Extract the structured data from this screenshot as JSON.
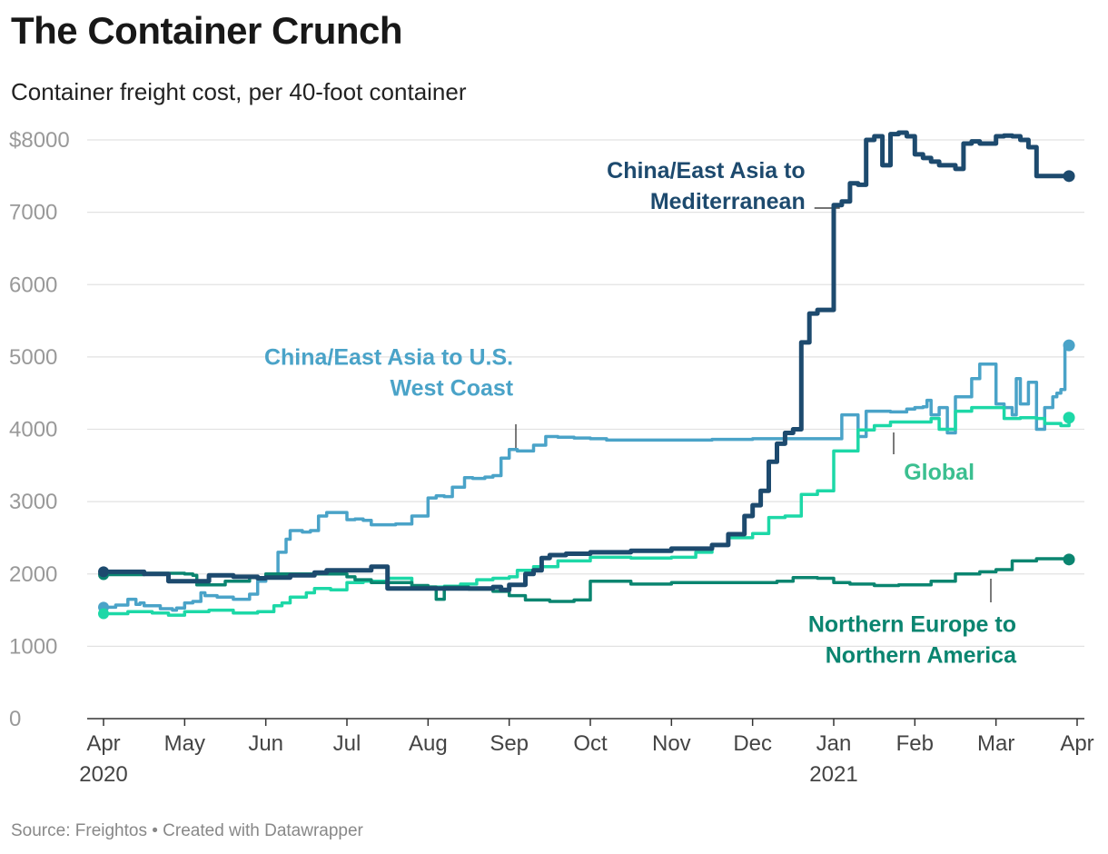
{
  "header": {
    "title": "The Container Crunch",
    "subtitle": "Container freight cost, per 40-foot container"
  },
  "footer": {
    "source": "Source: Freightos • Created with Datawrapper"
  },
  "chart_data": {
    "type": "line",
    "title": "The Container Crunch",
    "subtitle": "Container freight cost, per 40-foot container",
    "xlabel": "",
    "ylabel": "",
    "ylim": [
      0,
      8000
    ],
    "xlim": [
      0,
      12
    ],
    "x_unit": "months since Apr 1, 2020",
    "grid": true,
    "y_ticks": [
      {
        "value": 8000,
        "label": "$8000"
      },
      {
        "value": 7000,
        "label": "7000"
      },
      {
        "value": 6000,
        "label": "6000"
      },
      {
        "value": 5000,
        "label": "5000"
      },
      {
        "value": 4000,
        "label": "4000"
      },
      {
        "value": 3000,
        "label": "3000"
      },
      {
        "value": 2000,
        "label": "2000"
      },
      {
        "value": 1000,
        "label": "1000"
      },
      {
        "value": 0,
        "label": "0"
      }
    ],
    "x_ticks": [
      {
        "value": 0,
        "label": "Apr",
        "sublabel": "2020"
      },
      {
        "value": 1,
        "label": "May"
      },
      {
        "value": 2,
        "label": "Jun"
      },
      {
        "value": 3,
        "label": "Jul"
      },
      {
        "value": 4,
        "label": "Aug"
      },
      {
        "value": 5,
        "label": "Sep"
      },
      {
        "value": 6,
        "label": "Oct"
      },
      {
        "value": 7,
        "label": "Nov"
      },
      {
        "value": 8,
        "label": "Dec"
      },
      {
        "value": 9,
        "label": "Jan",
        "sublabel": "2021"
      },
      {
        "value": 10,
        "label": "Feb"
      },
      {
        "value": 11,
        "label": "Mar"
      },
      {
        "value": 12,
        "label": "Apr"
      }
    ],
    "series": [
      {
        "name": "China/East Asia to U.S. West Coast",
        "color": "#4aa3c8",
        "stroke": 3.5,
        "x": [
          0,
          0.15,
          0.3,
          0.4,
          0.45,
          0.5,
          0.7,
          0.85,
          0.9,
          1.0,
          1.1,
          1.2,
          1.25,
          1.4,
          1.6,
          1.8,
          1.9,
          2.0,
          2.15,
          2.25,
          2.3,
          2.45,
          2.55,
          2.65,
          2.75,
          3.0,
          3.1,
          3.2,
          3.3,
          3.4,
          3.6,
          3.8,
          4.0,
          4.1,
          4.2,
          4.3,
          4.45,
          4.55,
          4.7,
          4.8,
          4.9,
          5.0,
          5.1,
          5.3,
          5.45,
          5.6,
          5.8,
          6.0,
          6.2,
          6.5,
          7.0,
          7.5,
          8.0,
          8.5,
          9.0,
          9.1,
          9.2,
          9.3,
          9.4,
          9.5,
          9.7,
          9.9,
          10.0,
          10.1,
          10.15,
          10.2,
          10.3,
          10.4,
          10.5,
          10.6,
          10.7,
          10.8,
          10.9,
          11.0,
          11.1,
          11.2,
          11.25,
          11.3,
          11.4,
          11.5,
          11.6,
          11.7,
          11.75,
          11.8,
          11.85,
          11.9
        ],
        "values": [
          1540,
          1570,
          1650,
          1580,
          1600,
          1560,
          1520,
          1500,
          1530,
          1600,
          1620,
          1740,
          1700,
          1680,
          1650,
          1720,
          1900,
          2000,
          2300,
          2480,
          2600,
          2580,
          2600,
          2800,
          2850,
          2750,
          2760,
          2740,
          2680,
          2680,
          2690,
          2800,
          3050,
          3080,
          3070,
          3200,
          3330,
          3320,
          3340,
          3360,
          3600,
          3720,
          3700,
          3780,
          3900,
          3890,
          3880,
          3870,
          3850,
          3850,
          3850,
          3860,
          3870,
          3870,
          3870,
          4200,
          4200,
          3900,
          4250,
          4250,
          4240,
          4280,
          4300,
          4310,
          4400,
          4200,
          4300,
          3950,
          4450,
          4450,
          4700,
          4900,
          4900,
          4350,
          4300,
          4200,
          4700,
          4350,
          4650,
          4000,
          4300,
          4450,
          4500,
          4550,
          5180,
          5160
        ]
      },
      {
        "name": "Global",
        "color": "#1dd8a7",
        "stroke": 3.5,
        "x": [
          0,
          0.3,
          0.6,
          0.8,
          1.0,
          1.3,
          1.6,
          1.9,
          2.1,
          2.2,
          2.3,
          2.5,
          2.6,
          2.8,
          3.0,
          3.2,
          3.5,
          3.8,
          4.0,
          4.2,
          4.4,
          4.6,
          4.8,
          5.0,
          5.1,
          5.3,
          5.6,
          6.0,
          6.5,
          7.0,
          7.3,
          7.5,
          7.7,
          8.0,
          8.2,
          8.4,
          8.6,
          8.8,
          9.0,
          9.1,
          9.3,
          9.5,
          9.7,
          10.0,
          10.2,
          10.3,
          10.5,
          10.7,
          10.9,
          11.1,
          11.3,
          11.5,
          11.6,
          11.8,
          11.9
        ],
        "values": [
          1450,
          1480,
          1460,
          1430,
          1480,
          1500,
          1460,
          1480,
          1560,
          1600,
          1680,
          1740,
          1800,
          1780,
          1880,
          1900,
          1940,
          1830,
          1820,
          1830,
          1860,
          1920,
          1940,
          1960,
          2050,
          2100,
          2180,
          2230,
          2220,
          2230,
          2300,
          2400,
          2500,
          2560,
          2780,
          2800,
          3100,
          3150,
          3700,
          3700,
          3990,
          4050,
          4100,
          4100,
          4150,
          4000,
          4250,
          4300,
          4300,
          4150,
          4160,
          4150,
          4080,
          4050,
          4160
        ]
      },
      {
        "name": "Northern Europe to Northern America",
        "color": "#0b8570",
        "stroke": 3.5,
        "x": [
          0,
          0.5,
          1.0,
          1.1,
          1.15,
          1.5,
          1.8,
          2.0,
          3.0,
          3.1,
          3.3,
          3.8,
          4.0,
          4.1,
          4.2,
          4.5,
          4.8,
          5.0,
          5.2,
          5.5,
          5.8,
          5.9,
          6.0,
          6.5,
          7.0,
          7.5,
          8.0,
          8.3,
          8.5,
          8.8,
          9.0,
          9.2,
          9.5,
          9.8,
          10.0,
          10.2,
          10.5,
          10.8,
          11.0,
          11.2,
          11.5,
          11.9
        ],
        "values": [
          1990,
          2010,
          2000,
          1980,
          1850,
          1900,
          1950,
          2000,
          1960,
          1920,
          1880,
          1840,
          1820,
          1650,
          1820,
          1790,
          1760,
          1700,
          1640,
          1620,
          1640,
          1640,
          1900,
          1860,
          1880,
          1880,
          1880,
          1900,
          1950,
          1940,
          1880,
          1860,
          1840,
          1850,
          1850,
          1900,
          2000,
          2030,
          2060,
          2180,
          2210,
          2200
        ]
      },
      {
        "name": "China/East Asia to Mediterranean",
        "color": "#1d4a6e",
        "stroke": 5,
        "x": [
          0,
          0.5,
          0.8,
          1.0,
          1.3,
          1.6,
          1.9,
          2.0,
          2.3,
          2.6,
          2.75,
          3.0,
          3.3,
          3.4,
          3.5,
          4.0,
          4.3,
          4.5,
          4.8,
          4.9,
          5.0,
          5.2,
          5.3,
          5.4,
          5.5,
          5.7,
          6.0,
          6.5,
          7.0,
          7.5,
          7.7,
          7.9,
          8.0,
          8.1,
          8.2,
          8.3,
          8.4,
          8.5,
          8.6,
          8.7,
          8.8,
          8.9,
          9.0,
          9.1,
          9.2,
          9.3,
          9.4,
          9.5,
          9.6,
          9.7,
          9.8,
          9.9,
          10.0,
          10.1,
          10.2,
          10.3,
          10.4,
          10.5,
          10.6,
          10.7,
          10.8,
          10.9,
          11.0,
          11.1,
          11.2,
          11.3,
          11.4,
          11.5,
          11.6,
          11.7,
          11.8,
          11.9
        ],
        "values": [
          2030,
          2000,
          1900,
          1900,
          1980,
          1960,
          1940,
          1950,
          1980,
          2020,
          2050,
          2050,
          2100,
          2100,
          1800,
          1800,
          1800,
          1800,
          1820,
          1780,
          1850,
          2000,
          2050,
          2220,
          2260,
          2280,
          2300,
          2320,
          2350,
          2400,
          2550,
          2800,
          2950,
          3150,
          3550,
          3800,
          3950,
          4000,
          5200,
          5600,
          5650,
          5650,
          7100,
          7150,
          7400,
          7380,
          8000,
          8050,
          7650,
          8080,
          8100,
          8050,
          7800,
          7750,
          7700,
          7650,
          7650,
          7600,
          7950,
          7980,
          7950,
          7950,
          8050,
          8060,
          8050,
          8000,
          7900,
          7500,
          7500,
          7500,
          7500,
          7500
        ]
      }
    ],
    "annotations": [
      {
        "series": "China/East Asia to Mediterranean",
        "lines": [
          "China/East Asia to",
          "Mediterranean"
        ],
        "color": "#1d4a6e",
        "anchor": "end",
        "x": 8.65,
        "y": 7470
      },
      {
        "series": "China/East Asia to U.S. West Coast",
        "lines": [
          "China/East Asia to U.S.",
          "West Coast"
        ],
        "color": "#4aa3c8",
        "anchor": "end",
        "x": 5.05,
        "y": 4890
      },
      {
        "series": "Global",
        "lines": [
          "Global"
        ],
        "color": "#3bbf90",
        "anchor": "middle",
        "x": 10.3,
        "y": 3300
      },
      {
        "series": "Northern Europe to Northern America",
        "lines": [
          "Northern Europe to",
          "Northern America"
        ],
        "color": "#0b8570",
        "anchor": "end",
        "x": 11.25,
        "y": 1200
      }
    ]
  }
}
